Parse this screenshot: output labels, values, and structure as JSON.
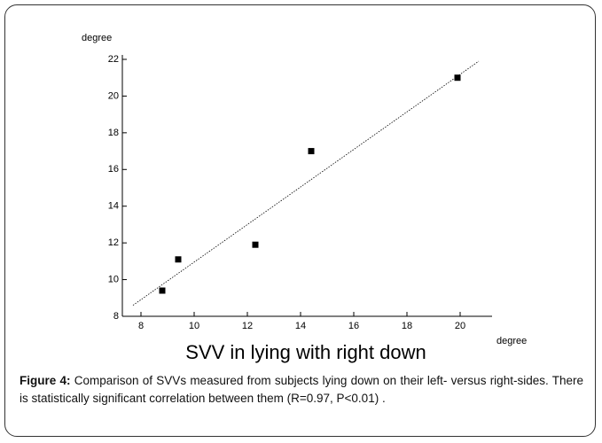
{
  "chart_data": {
    "type": "scatter",
    "y_label": "degree",
    "x_label": "degree",
    "title": "SVV in lying with right down",
    "x": [
      8.8,
      9.4,
      12.3,
      14.4,
      19.9
    ],
    "values": [
      9.4,
      11.1,
      11.9,
      17.0,
      21.0
    ],
    "color": "#000000",
    "trend_line": {
      "x": [
        7.7,
        20.7
      ],
      "y": [
        8.6,
        21.9
      ]
    },
    "xlim": [
      7.3,
      21.2
    ],
    "ylim": [
      8,
      22
    ],
    "xticks": [
      8,
      10,
      12,
      14,
      16,
      18,
      20
    ],
    "yticks": [
      8,
      10,
      12,
      14,
      16,
      18,
      20,
      22
    ],
    "caption_label": "Figure 4:",
    "caption": "Comparison of SVVs measured from subjects lying down on their left- versus right-sides.  There is statistically significant correlation between them (R=0.97, P<0.01) ."
  }
}
